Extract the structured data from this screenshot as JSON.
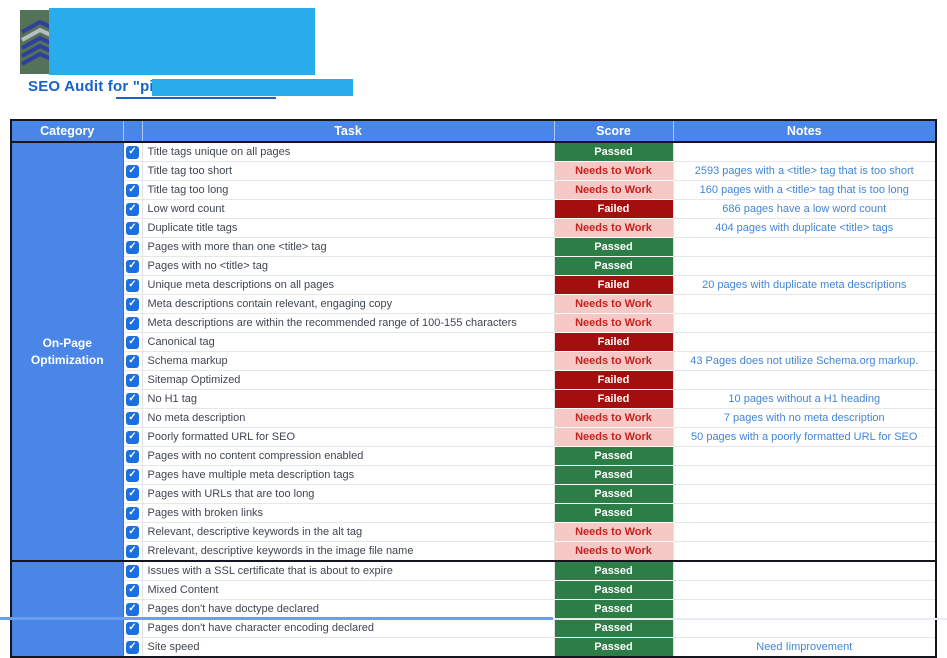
{
  "header": {
    "title_prefix": "SEO Audit for \"",
    "title_link_text": "picl"
  },
  "colors": {
    "redaction": "#29aceb",
    "header_blue": "#4a86e8",
    "checkbox_blue": "#1b6fe0",
    "title_blue": "#1661cb",
    "note_blue": "#4285d6",
    "bottom_strip": "#6d9eeb"
  },
  "logo": {
    "name": "stacked-layers-logo",
    "bg": "#547257",
    "layer_color": "#2e3f9e",
    "accent_color": "#b8bdc4"
  },
  "table": {
    "headers": {
      "category": "Category",
      "checkbox": "",
      "task": "Task",
      "score": "Score",
      "notes": "Notes"
    },
    "score_styles": {
      "Passed": {
        "bg": "#2d7d46",
        "fg": "#ffffff"
      },
      "Needs to Work": {
        "bg": "#f6c9c6",
        "fg": "#c5221f"
      },
      "Failed": {
        "bg": "#a50e0e",
        "fg": "#ffffff"
      }
    },
    "sections": [
      {
        "category": "On-Page Optimization",
        "rows": [
          {
            "task": "Title tags unique on all pages",
            "score": "Passed",
            "note": ""
          },
          {
            "task": "Title tag too short",
            "score": "Needs to Work",
            "note": "2593 pages with a <title> tag that is too short"
          },
          {
            "task": "Title tag too long",
            "score": "Needs to Work",
            "note": "160 pages with a <title> tag that is too long"
          },
          {
            "task": "Low word count",
            "score": "Failed",
            "note": "686 pages have a low word count"
          },
          {
            "task": "Duplicate title tags",
            "score": "Needs to Work",
            "note": "404 pages with duplicate <title> tags"
          },
          {
            "task": "Pages with more than one <title> tag",
            "score": "Passed",
            "note": ""
          },
          {
            "task": "Pages with no <title> tag",
            "score": "Passed",
            "note": ""
          },
          {
            "task": "Unique meta descriptions on all pages",
            "score": "Failed",
            "note": "20 pages with duplicate meta descriptions"
          },
          {
            "task": "Meta descriptions contain relevant, engaging copy",
            "score": "Needs to Work",
            "note": ""
          },
          {
            "task": "Meta descriptions are within the recommended range of 100-155 characters",
            "score": "Needs to Work",
            "note": ""
          },
          {
            "task": "Canonical tag",
            "score": "Failed",
            "note": ""
          },
          {
            "task": "Schema markup",
            "score": "Needs to Work",
            "note": "43 Pages does not utilize Schema.org markup."
          },
          {
            "task": "Sitemap Optimized",
            "score": "Failed",
            "note": ""
          },
          {
            "task": "No H1 tag",
            "score": "Failed",
            "note": "10 pages without a H1 heading"
          },
          {
            "task": "No meta description",
            "score": "Needs to Work",
            "note": "7 pages with no meta description"
          },
          {
            "task": "Poorly formatted URL for SEO",
            "score": "Needs to Work",
            "note": "50 pages with a poorly formatted URL for SEO"
          },
          {
            "task": "Pages with no content compression enabled",
            "score": "Passed",
            "note": ""
          },
          {
            "task": "Pages have multiple meta description tags",
            "score": "Passed",
            "note": ""
          },
          {
            "task": "Pages with URLs that are too long",
            "score": "Passed",
            "note": ""
          },
          {
            "task": "Pages with broken links",
            "score": "Passed",
            "note": ""
          },
          {
            "task": "Relevant, descriptive keywords in the alt tag",
            "score": "Needs to Work",
            "note": ""
          },
          {
            "task": "Rrelevant, descriptive keywords in the image file name",
            "score": "Needs to Work",
            "note": ""
          }
        ]
      },
      {
        "category": "",
        "rows": [
          {
            "task": "Issues with a SSL certificate that is about to expire",
            "score": "Passed",
            "note": ""
          },
          {
            "task": "Mixed Content",
            "score": "Passed",
            "note": ""
          },
          {
            "task": "Pages don't have doctype declared",
            "score": "Passed",
            "note": ""
          },
          {
            "task": "Pages don't have character encoding declared",
            "score": "Passed",
            "note": ""
          },
          {
            "task": "Site speed",
            "score": "Passed",
            "note": "Need Iimprovement"
          }
        ]
      }
    ]
  }
}
